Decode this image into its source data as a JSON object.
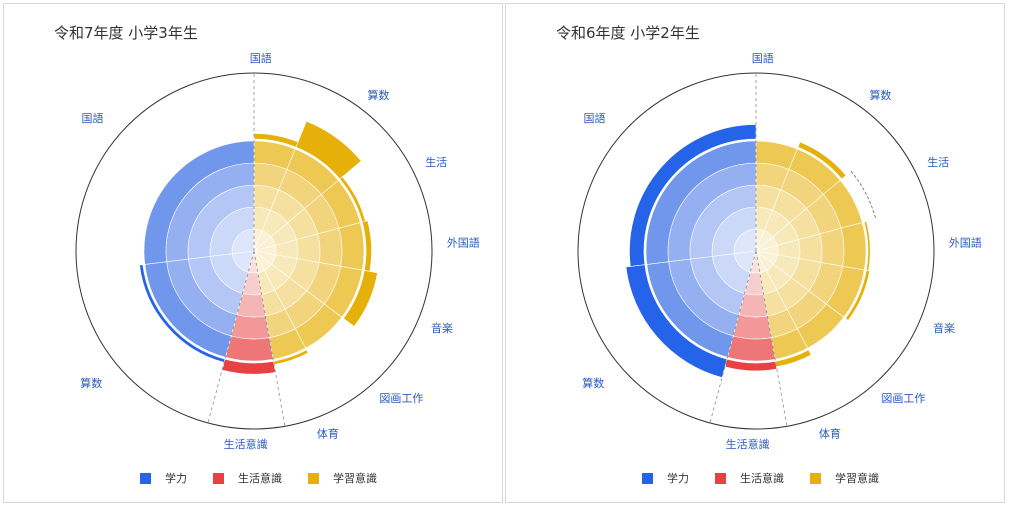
{
  "legend_colors": {
    "学力": "#2563e8",
    "生活意識": "#e84141",
    "学習意識": "#e6b00b"
  },
  "charts": [
    {
      "title": "令和7年度 小学3年生"
    },
    {
      "title": "令和6年度 小学2年生"
    }
  ],
  "chart_data": [
    {
      "type": "polar-area",
      "title": "令和7年度 小学3年生",
      "series": [
        {
          "name": "学力",
          "color": "#2563e8"
        },
        {
          "name": "生活意識",
          "color": "#e84141"
        },
        {
          "name": "学習意識",
          "color": "#e6b00b"
        }
      ],
      "legend_position": "bottom",
      "segments": [
        {
          "label": "国語",
          "series": "学習意識",
          "value": 1.05
        },
        {
          "label": "算数",
          "series": "学習意識",
          "value": 1.25
        },
        {
          "label": "生活",
          "series": "学習意識",
          "value": 1.03
        },
        {
          "label": "外国語",
          "series": "学習意識",
          "value": 1.05
        },
        {
          "label": "音楽",
          "series": "学習意識",
          "value": 1.12
        },
        {
          "label": "図画工作",
          "series": "学習意識",
          "value": 1.0
        },
        {
          "label": "体育",
          "series": "学習意識",
          "value": 1.03
        },
        {
          "label": "生活意識",
          "series": "生活意識",
          "value": 1.1
        },
        {
          "label": "算数",
          "series": "学力",
          "value": 1.03
        },
        {
          "label": "国語",
          "series": "学力",
          "value": 1.0
        }
      ]
    },
    {
      "type": "polar-area",
      "title": "令和6年度 小学2年生",
      "series": [
        {
          "name": "学力",
          "color": "#2563e8"
        },
        {
          "name": "生活意識",
          "color": "#e84141"
        },
        {
          "name": "学習意識",
          "color": "#e6b00b"
        }
      ],
      "legend_position": "bottom",
      "segments": [
        {
          "label": "国語",
          "series": "学習意識",
          "value": 1.0
        },
        {
          "label": "算数",
          "series": "学習意識",
          "value": 1.05
        },
        {
          "label": "生活",
          "series": "学習意識",
          "value": 0.9
        },
        {
          "label": "外国語",
          "series": "学習意識",
          "value": 1.02
        },
        {
          "label": "音楽",
          "series": "学習意識",
          "value": 1.03
        },
        {
          "label": "図画工作",
          "series": "学習意識",
          "value": 1.0
        },
        {
          "label": "体育",
          "series": "学習意識",
          "value": 1.05
        },
        {
          "label": "生活意識",
          "series": "生活意識",
          "value": 1.07
        },
        {
          "label": "算数",
          "series": "学力",
          "value": 1.17
        },
        {
          "label": "国語",
          "series": "学力",
          "value": 1.13
        }
      ]
    }
  ]
}
